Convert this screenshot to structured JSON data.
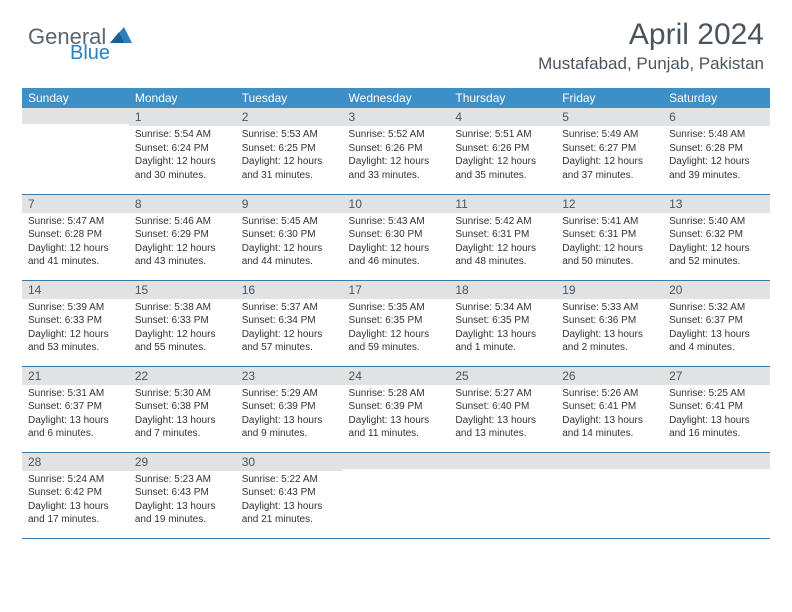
{
  "brand": {
    "part1": "General",
    "part2": "Blue"
  },
  "title": "April 2024",
  "location": "Mustafabad, Punjab, Pakistan",
  "colors": {
    "header_bg": "#3d8fc7",
    "header_text": "#ffffff",
    "daynum_bg": "#e1e2e4",
    "row_border": "#3d7aa8",
    "title_color": "#4a5560",
    "brand_gray": "#5a6570",
    "brand_blue": "#2f7fbf",
    "body_text": "#333333"
  },
  "weekdays": [
    "Sunday",
    "Monday",
    "Tuesday",
    "Wednesday",
    "Thursday",
    "Friday",
    "Saturday"
  ],
  "weeks": [
    [
      {
        "n": "",
        "lines": []
      },
      {
        "n": "1",
        "lines": [
          "Sunrise: 5:54 AM",
          "Sunset: 6:24 PM",
          "Daylight: 12 hours",
          "and 30 minutes."
        ]
      },
      {
        "n": "2",
        "lines": [
          "Sunrise: 5:53 AM",
          "Sunset: 6:25 PM",
          "Daylight: 12 hours",
          "and 31 minutes."
        ]
      },
      {
        "n": "3",
        "lines": [
          "Sunrise: 5:52 AM",
          "Sunset: 6:26 PM",
          "Daylight: 12 hours",
          "and 33 minutes."
        ]
      },
      {
        "n": "4",
        "lines": [
          "Sunrise: 5:51 AM",
          "Sunset: 6:26 PM",
          "Daylight: 12 hours",
          "and 35 minutes."
        ]
      },
      {
        "n": "5",
        "lines": [
          "Sunrise: 5:49 AM",
          "Sunset: 6:27 PM",
          "Daylight: 12 hours",
          "and 37 minutes."
        ]
      },
      {
        "n": "6",
        "lines": [
          "Sunrise: 5:48 AM",
          "Sunset: 6:28 PM",
          "Daylight: 12 hours",
          "and 39 minutes."
        ]
      }
    ],
    [
      {
        "n": "7",
        "lines": [
          "Sunrise: 5:47 AM",
          "Sunset: 6:28 PM",
          "Daylight: 12 hours",
          "and 41 minutes."
        ]
      },
      {
        "n": "8",
        "lines": [
          "Sunrise: 5:46 AM",
          "Sunset: 6:29 PM",
          "Daylight: 12 hours",
          "and 43 minutes."
        ]
      },
      {
        "n": "9",
        "lines": [
          "Sunrise: 5:45 AM",
          "Sunset: 6:30 PM",
          "Daylight: 12 hours",
          "and 44 minutes."
        ]
      },
      {
        "n": "10",
        "lines": [
          "Sunrise: 5:43 AM",
          "Sunset: 6:30 PM",
          "Daylight: 12 hours",
          "and 46 minutes."
        ]
      },
      {
        "n": "11",
        "lines": [
          "Sunrise: 5:42 AM",
          "Sunset: 6:31 PM",
          "Daylight: 12 hours",
          "and 48 minutes."
        ]
      },
      {
        "n": "12",
        "lines": [
          "Sunrise: 5:41 AM",
          "Sunset: 6:31 PM",
          "Daylight: 12 hours",
          "and 50 minutes."
        ]
      },
      {
        "n": "13",
        "lines": [
          "Sunrise: 5:40 AM",
          "Sunset: 6:32 PM",
          "Daylight: 12 hours",
          "and 52 minutes."
        ]
      }
    ],
    [
      {
        "n": "14",
        "lines": [
          "Sunrise: 5:39 AM",
          "Sunset: 6:33 PM",
          "Daylight: 12 hours",
          "and 53 minutes."
        ]
      },
      {
        "n": "15",
        "lines": [
          "Sunrise: 5:38 AM",
          "Sunset: 6:33 PM",
          "Daylight: 12 hours",
          "and 55 minutes."
        ]
      },
      {
        "n": "16",
        "lines": [
          "Sunrise: 5:37 AM",
          "Sunset: 6:34 PM",
          "Daylight: 12 hours",
          "and 57 minutes."
        ]
      },
      {
        "n": "17",
        "lines": [
          "Sunrise: 5:35 AM",
          "Sunset: 6:35 PM",
          "Daylight: 12 hours",
          "and 59 minutes."
        ]
      },
      {
        "n": "18",
        "lines": [
          "Sunrise: 5:34 AM",
          "Sunset: 6:35 PM",
          "Daylight: 13 hours",
          "and 1 minute."
        ]
      },
      {
        "n": "19",
        "lines": [
          "Sunrise: 5:33 AM",
          "Sunset: 6:36 PM",
          "Daylight: 13 hours",
          "and 2 minutes."
        ]
      },
      {
        "n": "20",
        "lines": [
          "Sunrise: 5:32 AM",
          "Sunset: 6:37 PM",
          "Daylight: 13 hours",
          "and 4 minutes."
        ]
      }
    ],
    [
      {
        "n": "21",
        "lines": [
          "Sunrise: 5:31 AM",
          "Sunset: 6:37 PM",
          "Daylight: 13 hours",
          "and 6 minutes."
        ]
      },
      {
        "n": "22",
        "lines": [
          "Sunrise: 5:30 AM",
          "Sunset: 6:38 PM",
          "Daylight: 13 hours",
          "and 7 minutes."
        ]
      },
      {
        "n": "23",
        "lines": [
          "Sunrise: 5:29 AM",
          "Sunset: 6:39 PM",
          "Daylight: 13 hours",
          "and 9 minutes."
        ]
      },
      {
        "n": "24",
        "lines": [
          "Sunrise: 5:28 AM",
          "Sunset: 6:39 PM",
          "Daylight: 13 hours",
          "and 11 minutes."
        ]
      },
      {
        "n": "25",
        "lines": [
          "Sunrise: 5:27 AM",
          "Sunset: 6:40 PM",
          "Daylight: 13 hours",
          "and 13 minutes."
        ]
      },
      {
        "n": "26",
        "lines": [
          "Sunrise: 5:26 AM",
          "Sunset: 6:41 PM",
          "Daylight: 13 hours",
          "and 14 minutes."
        ]
      },
      {
        "n": "27",
        "lines": [
          "Sunrise: 5:25 AM",
          "Sunset: 6:41 PM",
          "Daylight: 13 hours",
          "and 16 minutes."
        ]
      }
    ],
    [
      {
        "n": "28",
        "lines": [
          "Sunrise: 5:24 AM",
          "Sunset: 6:42 PM",
          "Daylight: 13 hours",
          "and 17 minutes."
        ]
      },
      {
        "n": "29",
        "lines": [
          "Sunrise: 5:23 AM",
          "Sunset: 6:43 PM",
          "Daylight: 13 hours",
          "and 19 minutes."
        ]
      },
      {
        "n": "30",
        "lines": [
          "Sunrise: 5:22 AM",
          "Sunset: 6:43 PM",
          "Daylight: 13 hours",
          "and 21 minutes."
        ]
      },
      {
        "n": "",
        "lines": []
      },
      {
        "n": "",
        "lines": []
      },
      {
        "n": "",
        "lines": []
      },
      {
        "n": "",
        "lines": []
      }
    ]
  ]
}
